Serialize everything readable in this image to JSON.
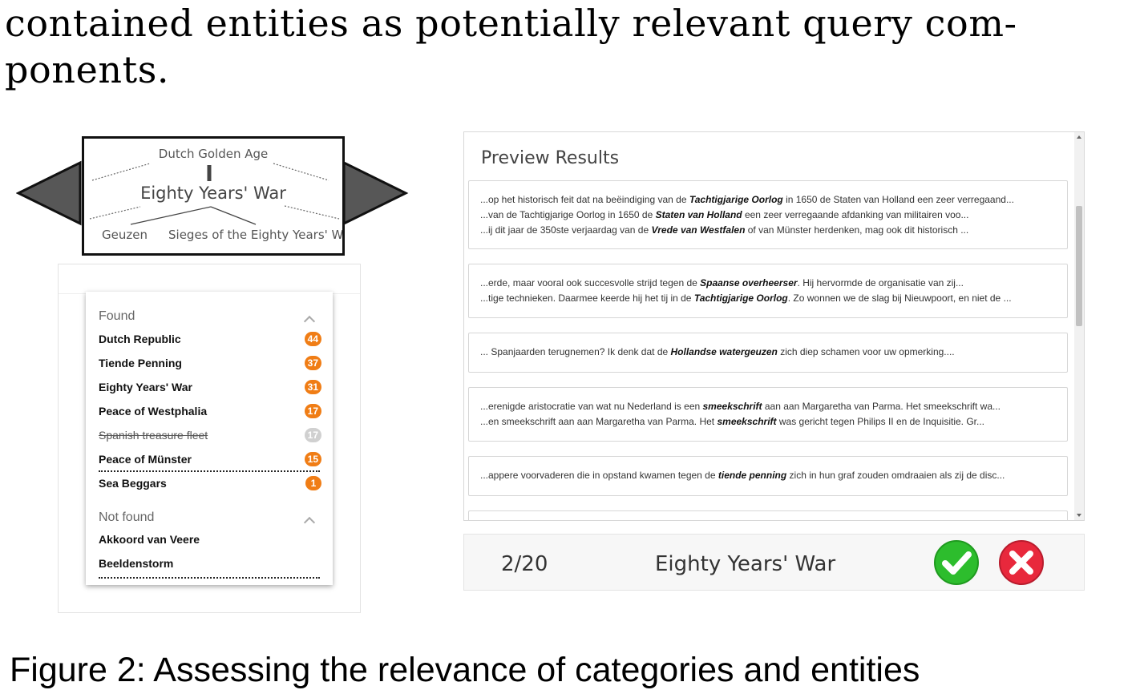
{
  "paper": {
    "line1": "contained entities as potentially relevant query com-",
    "line2": "ponents."
  },
  "category_navigator": {
    "parent": "Dutch Golden Age",
    "current": "Eighty Years' War",
    "children": [
      "Geuzen",
      "Sieges of the Eighty Years' W"
    ]
  },
  "entity_list": {
    "found_label": "Found",
    "found": [
      {
        "name": "Dutch Republic",
        "count": "44",
        "state": "active"
      },
      {
        "name": "Tiende Penning",
        "count": "37",
        "state": "active"
      },
      {
        "name": "Eighty Years' War",
        "count": "31",
        "state": "active"
      },
      {
        "name": "Peace of Westphalia",
        "count": "17",
        "state": "active"
      },
      {
        "name": "Spanish treasure fleet",
        "count": "17",
        "state": "rejected"
      },
      {
        "name": "Peace of Münster",
        "count": "15",
        "state": "active"
      },
      {
        "name": "Sea Beggars",
        "count": "1",
        "state": "active"
      }
    ],
    "not_found_label": "Not found",
    "not_found": [
      "Akkoord van Veere",
      "Beeldenstorm"
    ]
  },
  "preview": {
    "title": "Preview Results",
    "results": [
      [
        [
          "...op het historisch feit dat na beëindiging van de ",
          "Tachtigjarige Oorlog",
          " in 1650 de Staten van Holland een zeer verregaand..."
        ],
        [
          "...van de Tachtigjarige Oorlog in 1650 de ",
          "Staten van Holland",
          " een zeer verregaande afdanking van militairen voo..."
        ],
        [
          "...ij dit jaar de 350ste verjaardag van de ",
          "Vrede van Westfalen",
          " of van Münster herdenken, mag ook dit historisch ..."
        ]
      ],
      [
        [
          "...erde, maar vooral ook succesvolle strijd tegen de ",
          "Spaanse overheerser",
          ". Hij hervormde de organisatie van zij..."
        ],
        [
          "...tige technieken. Daarmee keerde hij het tij in de ",
          "Tachtigjarige Oorlog",
          ". Zo wonnen we de slag bij Nieuwpoort, en niet de ..."
        ]
      ],
      [
        [
          "... Spanjaarden terugnemen? Ik denk dat de ",
          "Hollandse watergeuzen",
          " zich diep schamen voor uw opmerking...."
        ]
      ],
      [
        [
          "...erenigde aristocratie van wat nu Nederland is een ",
          "smeekschrift",
          " aan aan Margaretha van Parma. Het smeekschrift wa..."
        ],
        [
          "...en smeekschrift aan aan Margaretha van Parma. Het ",
          "smeekschrift",
          " was gericht tegen Philips II en de Inquisitie. Gr..."
        ]
      ],
      [
        [
          "...appere voorvaderen die in opstand kwamen tegen de ",
          "tiende penning",
          " zich in hun graf zouden omdraaien als zij de disc..."
        ]
      ]
    ]
  },
  "assessment_bar": {
    "counter": "2/20",
    "entity": "Eighty Years' War",
    "accept_icon": "check-circle-icon",
    "reject_icon": "x-circle-icon",
    "accept_color": "#2dbd2d",
    "reject_color": "#e8283c"
  },
  "caption": "Figure 2: Assessing the relevance of categories and entities"
}
